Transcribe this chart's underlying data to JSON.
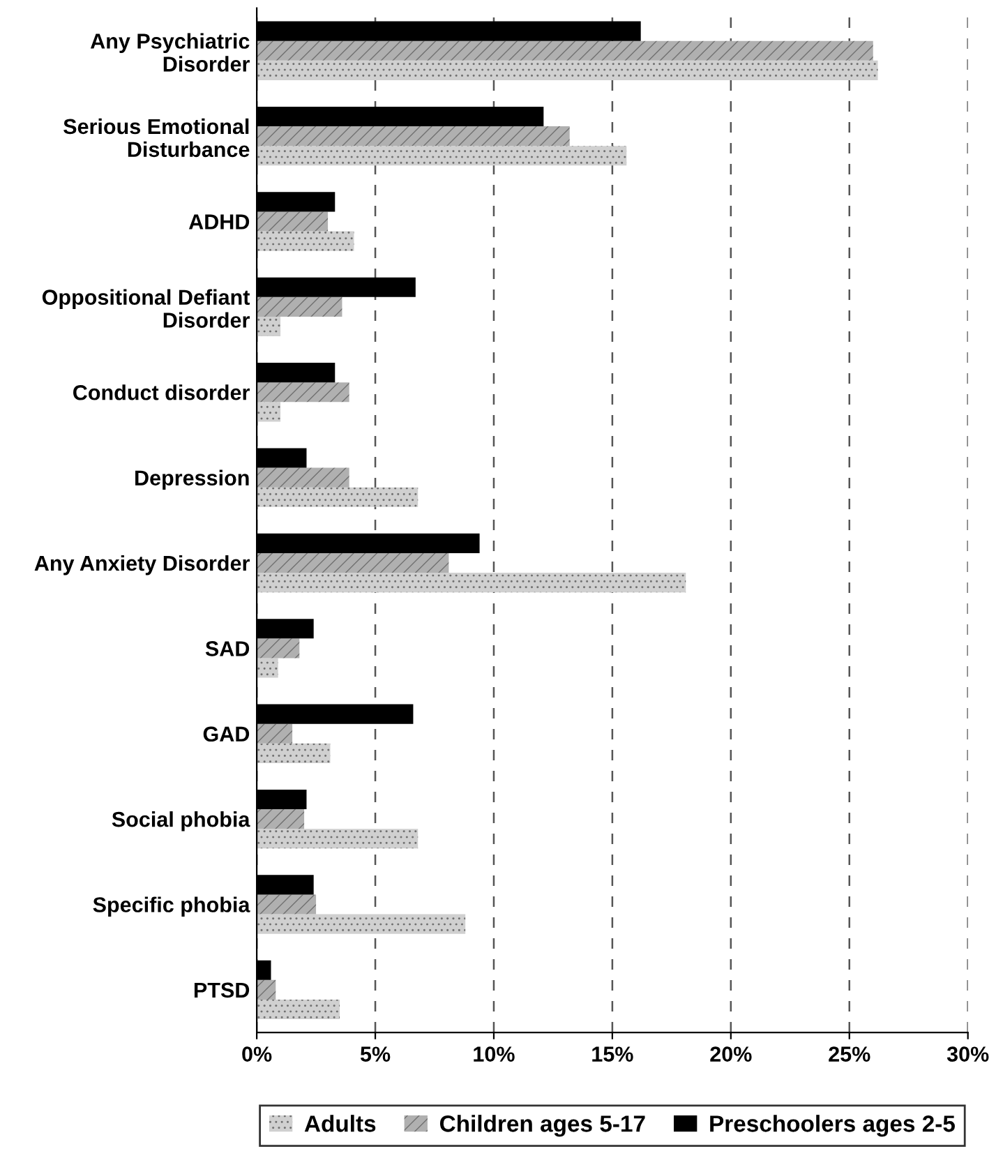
{
  "chart_data": {
    "type": "bar",
    "orientation": "horizontal",
    "categories": [
      "Any Psychiatric\nDisorder",
      "Serious Emotional\nDisturbance",
      "ADHD",
      "Oppositional Defiant\nDisorder",
      "Conduct disorder",
      "Depression",
      "Any Anxiety Disorder",
      "SAD",
      "GAD",
      "Social phobia",
      "Specific phobia",
      "PTSD"
    ],
    "series": [
      {
        "name": "Adults",
        "color": "#d0d0d0",
        "values": [
          26.2,
          15.6,
          4.1,
          1.0,
          1.0,
          6.8,
          18.1,
          0.9,
          3.1,
          6.8,
          8.8,
          3.5
        ]
      },
      {
        "name": "Children ages 5-17",
        "color": "#b0b0b0",
        "values": [
          26.0,
          13.2,
          3.0,
          3.6,
          3.9,
          3.9,
          8.1,
          1.8,
          1.5,
          2.0,
          2.5,
          0.8
        ]
      },
      {
        "name": "Preschoolers ages 2-5",
        "color": "#000000",
        "values": [
          16.2,
          12.1,
          3.3,
          6.7,
          3.3,
          2.1,
          9.4,
          2.4,
          6.6,
          2.1,
          2.4,
          0.6
        ]
      }
    ],
    "xlim": [
      0,
      30
    ],
    "xticks": [
      {
        "value": 0,
        "label": "0%"
      },
      {
        "value": 5,
        "label": "5%"
      },
      {
        "value": 10,
        "label": "10%"
      },
      {
        "value": 15,
        "label": "15%"
      },
      {
        "value": 20,
        "label": "20%"
      },
      {
        "value": 25,
        "label": "25%"
      },
      {
        "value": 30,
        "label": "30%"
      }
    ],
    "grid": "x",
    "line_style": "dashed",
    "legend": "bottom"
  }
}
